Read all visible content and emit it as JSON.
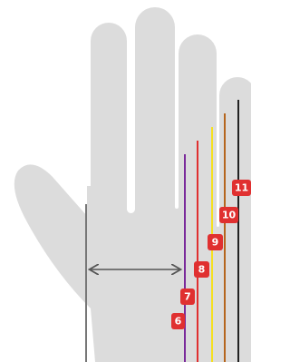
{
  "sizes": [
    {
      "label": "6"
    },
    {
      "label": "7"
    },
    {
      "label": "8"
    },
    {
      "label": "9"
    },
    {
      "label": "10"
    },
    {
      "label": "11"
    }
  ]
}
